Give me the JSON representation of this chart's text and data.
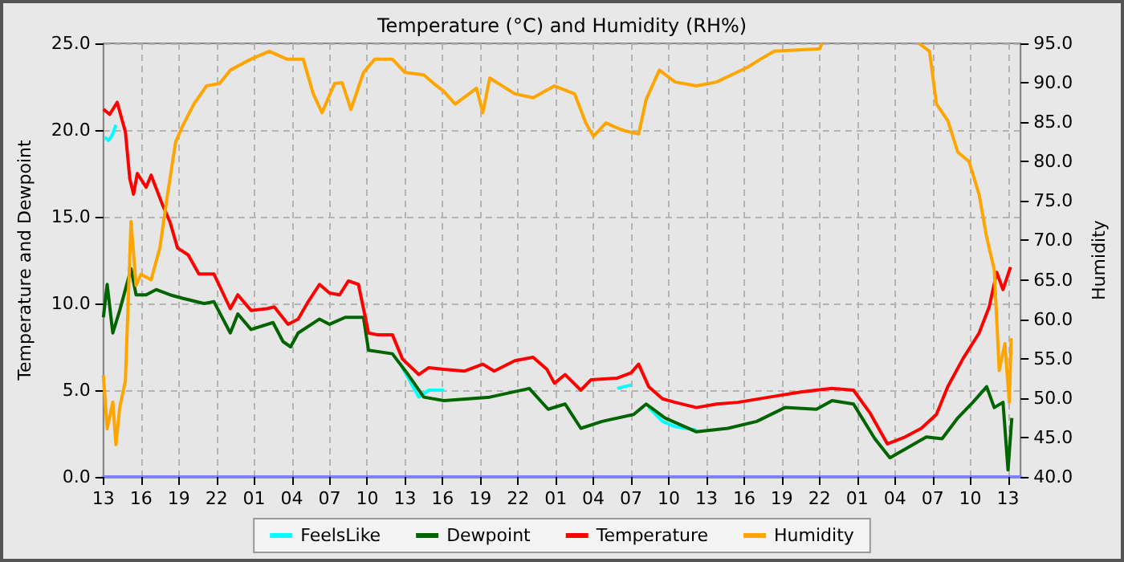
{
  "chart_data": {
    "type": "line",
    "title": "Temperature (°C) and Humidity (RH%)",
    "ylabel": "Temperature and Dewpoint",
    "y2label": "Humidity",
    "xlim": [
      "--01-01T13:00",
      "--01-04T14:00"
    ],
    "xticks": [
      {
        "value": "--01-01T13:00",
        "label": "13"
      },
      {
        "value": "--01-01T16:00",
        "label": "16"
      },
      {
        "value": "--01-01T19:00",
        "label": "19"
      },
      {
        "value": "--01-01T22:00",
        "label": "22"
      },
      {
        "value": "--01-02T01:00",
        "label": "01"
      },
      {
        "value": "--01-02T04:00",
        "label": "04"
      },
      {
        "value": "--01-02T07:00",
        "label": "07"
      },
      {
        "value": "--01-02T10:00",
        "label": "10"
      },
      {
        "value": "--01-02T13:00",
        "label": "13"
      },
      {
        "value": "--01-02T16:00",
        "label": "16"
      },
      {
        "value": "--01-02T19:00",
        "label": "19"
      },
      {
        "value": "--01-02T22:00",
        "label": "22"
      },
      {
        "value": "--01-03T01:00",
        "label": "01"
      },
      {
        "value": "--01-03T04:00",
        "label": "04"
      },
      {
        "value": "--01-03T07:00",
        "label": "07"
      },
      {
        "value": "--01-03T10:00",
        "label": "10"
      },
      {
        "value": "--01-03T13:00",
        "label": "13"
      },
      {
        "value": "--01-03T16:00",
        "label": "16"
      },
      {
        "value": "--01-03T19:00",
        "label": "19"
      },
      {
        "value": "--01-03T22:00",
        "label": "22"
      },
      {
        "value": "--01-04T01:00",
        "label": "01"
      },
      {
        "value": "--01-04T04:00",
        "label": "04"
      },
      {
        "value": "--01-04T07:00",
        "label": "07"
      },
      {
        "value": "--01-04T10:00",
        "label": "10"
      },
      {
        "value": "--01-04T13:00",
        "label": "13"
      }
    ],
    "ylim": [
      0,
      25
    ],
    "yticks": [
      {
        "value": 0,
        "label": "0.0"
      },
      {
        "value": 5,
        "label": "5.0"
      },
      {
        "value": 10,
        "label": "10.0"
      },
      {
        "value": 15,
        "label": "15.0"
      },
      {
        "value": 20,
        "label": "20.0"
      },
      {
        "value": 25,
        "label": "25.0"
      }
    ],
    "y2lim": [
      40,
      95
    ],
    "y2ticks": [
      {
        "value": 40,
        "label": "40.0"
      },
      {
        "value": 45,
        "label": "45.0"
      },
      {
        "value": 50,
        "label": "50.0"
      },
      {
        "value": 55,
        "label": "55.0"
      },
      {
        "value": 60,
        "label": "60.0"
      },
      {
        "value": 65,
        "label": "65.0"
      },
      {
        "value": 70,
        "label": "70.0"
      },
      {
        "value": 75,
        "label": "75.0"
      },
      {
        "value": 80,
        "label": "80.0"
      },
      {
        "value": 85,
        "label": "85.0"
      },
      {
        "value": 90,
        "label": "90.0"
      },
      {
        "value": 95,
        "label": "95.0"
      }
    ],
    "grid": true,
    "legend": "bottom",
    "marker": "none",
    "series": [
      {
        "name": "FeelsLike",
        "color": "#00ffff",
        "x": [
          "--01-01T13:06",
          "--01-01T13:24",
          "--01-01T13:42",
          "--01-01T14:00",
          "--01-01T20:00",
          "--01-02T12:48",
          "--01-02T14:06",
          "--01-02T14:54",
          "--01-02T16:06",
          "--01-02T23:00",
          "--01-03T05:54",
          "--01-03T07:00",
          "--01-03T08:00",
          "--01-03T08:24",
          "--01-03T09:30",
          "--01-03T10:30",
          "--01-03T12:12"
        ],
        "values": [
          19.6,
          19.4,
          19.7,
          20.3,
          null,
          6.3,
          4.6,
          5.0,
          5.0,
          null,
          5.1,
          5.3,
          null,
          4.0,
          3.2,
          2.9,
          2.7
        ]
      },
      {
        "name": "Dewpoint",
        "color": "#006400",
        "x": [
          "--01-01T13:00",
          "--01-01T13:18",
          "--01-01T13:45",
          "--01-01T14:18",
          "--01-01T15:12",
          "--01-01T15:36",
          "--01-01T16:24",
          "--01-01T17:12",
          "--01-01T18:18",
          "--01-01T19:18",
          "--01-01T21:00",
          "--01-01T21:48",
          "--01-01T23:06",
          "--01-01T23:42",
          "--01-02T00:45",
          "--01-02T02:30",
          "--01-02T03:18",
          "--01-02T03:54",
          "--01-02T04:30",
          "--01-02T06:12",
          "--01-02T07:00",
          "--01-02T08:15",
          "--01-02T09:42",
          "--01-02T10:06",
          "--01-02T12:00",
          "--01-02T13:15",
          "--01-02T14:30",
          "--01-02T16:06",
          "--01-02T19:45",
          "--01-02T22:54",
          "--01-03T00:24",
          "--01-03T01:45",
          "--01-03T03:00",
          "--01-03T04:42",
          "--01-03T07:12",
          "--01-03T08:12",
          "--01-03T09:42",
          "--01-03T12:12",
          "--01-03T14:42",
          "--01-03T17:00",
          "--01-03T19:15",
          "--01-03T21:45",
          "--01-03T23:00",
          "--01-04T00:42",
          "--01-04T02:24",
          "--01-04T03:36",
          "--01-04T04:48",
          "--01-04T06:30",
          "--01-04T07:45",
          "--01-04T09:00",
          "--01-04T10:12",
          "--01-04T11:18",
          "--01-04T11:54",
          "--01-04T12:36",
          "--01-04T13:00",
          "--01-04T13:18"
        ],
        "values": [
          9.2,
          11.1,
          8.3,
          9.6,
          12.0,
          10.5,
          10.5,
          10.8,
          10.5,
          10.3,
          10.0,
          10.1,
          8.3,
          9.4,
          8.5,
          8.9,
          7.8,
          7.5,
          8.3,
          9.1,
          8.8,
          9.2,
          9.2,
          7.3,
          7.1,
          5.9,
          4.6,
          4.4,
          4.6,
          5.1,
          3.9,
          4.2,
          2.8,
          3.2,
          3.6,
          4.2,
          3.4,
          2.6,
          2.8,
          3.2,
          4.0,
          3.9,
          4.4,
          4.2,
          2.2,
          1.1,
          1.6,
          2.3,
          2.2,
          3.4,
          4.3,
          5.2,
          4.0,
          4.3,
          0.4,
          3.4
        ]
      },
      {
        "name": "Temperature",
        "color": "#ff0000",
        "x": [
          "--01-01T13:00",
          "--01-01T13:30",
          "--01-01T14:06",
          "--01-01T14:45",
          "--01-01T15:06",
          "--01-01T15:24",
          "--01-01T15:42",
          "--01-01T16:24",
          "--01-01T16:48",
          "--01-01T17:42",
          "--01-01T18:18",
          "--01-01T18:54",
          "--01-01T19:45",
          "--01-01T20:36",
          "--01-01T21:48",
          "--01-01T23:06",
          "--01-01T23:42",
          "--01-02T00:45",
          "--01-02T02:00",
          "--01-02T02:36",
          "--01-02T03:42",
          "--01-02T04:30",
          "--01-02T05:18",
          "--01-02T06:12",
          "--01-02T07:00",
          "--01-02T07:48",
          "--01-02T08:30",
          "--01-02T09:18",
          "--01-02T10:06",
          "--01-02T10:45",
          "--01-02T12:00",
          "--01-02T12:48",
          "--01-02T14:06",
          "--01-02T14:54",
          "--01-02T16:06",
          "--01-02T17:45",
          "--01-02T19:12",
          "--01-02T20:06",
          "--01-02T21:45",
          "--01-02T23:12",
          "--01-03T00:18",
          "--01-03T00:54",
          "--01-03T01:45",
          "--01-03T03:00",
          "--01-03T03:48",
          "--01-03T05:54",
          "--01-03T07:00",
          "--01-03T07:36",
          "--01-03T08:24",
          "--01-03T09:30",
          "--01-03T10:30",
          "--01-03T12:12",
          "--01-03T13:48",
          "--01-03T15:30",
          "--01-03T18:00",
          "--01-03T20:30",
          "--01-03T23:00",
          "--01-04T00:42",
          "--01-04T02:00",
          "--01-04T03:24",
          "--01-04T04:48",
          "--01-04T06:06",
          "--01-04T07:18",
          "--01-04T08:12",
          "--01-04T09:24",
          "--01-04T10:42",
          "--01-04T11:30",
          "--01-04T12:06",
          "--01-04T12:36",
          "--01-04T13:12"
        ],
        "values": [
          21.2,
          20.9,
          21.6,
          19.9,
          17.2,
          16.3,
          17.5,
          16.7,
          17.4,
          15.7,
          14.7,
          13.2,
          12.8,
          11.7,
          11.7,
          9.7,
          10.5,
          9.6,
          9.7,
          9.8,
          8.8,
          9.1,
          10.1,
          11.1,
          10.6,
          10.5,
          11.3,
          11.1,
          8.3,
          8.2,
          8.2,
          6.8,
          5.9,
          6.3,
          6.2,
          6.1,
          6.5,
          6.1,
          6.7,
          6.9,
          6.2,
          5.4,
          5.9,
          5.0,
          5.6,
          5.7,
          6.0,
          6.5,
          5.2,
          4.5,
          4.3,
          4.0,
          4.2,
          4.3,
          4.6,
          4.9,
          5.1,
          5.0,
          3.7,
          1.9,
          2.3,
          2.8,
          3.6,
          5.2,
          6.8,
          8.3,
          9.8,
          11.8,
          10.8,
          12.1
        ]
      },
      {
        "name": "Humidity",
        "color": "#ffa500",
        "axis": "y2",
        "x": [
          "--01-01T13:00",
          "--01-01T13:18",
          "--01-01T13:45",
          "--01-01T14:00",
          "--01-01T14:18",
          "--01-01T14:45",
          "--01-01T15:12",
          "--01-01T15:36",
          "--01-01T16:00",
          "--01-01T16:48",
          "--01-01T17:30",
          "--01-01T18:06",
          "--01-01T18:45",
          "--01-01T19:18",
          "--01-01T20:12",
          "--01-01T21:12",
          "--01-01T22:15",
          "--01-01T23:06",
          "--01-02T00:45",
          "--01-02T02:12",
          "--01-02T03:36",
          "--01-02T04:54",
          "--01-02T05:42",
          "--01-02T06:24",
          "--01-02T07:24",
          "--01-02T08:00",
          "--01-02T08:42",
          "--01-02T09:42",
          "--01-02T10:36",
          "--01-02T12:00",
          "--01-02T13:00",
          "--01-02T14:30",
          "--01-02T15:18",
          "--01-02T16:06",
          "--01-02T17:00",
          "--01-02T18:42",
          "--01-02T19:12",
          "--01-02T19:45",
          "--01-02T21:45",
          "--01-02T23:12",
          "--01-03T00:54",
          "--01-03T02:30",
          "--01-03T03:24",
          "--01-03T04:00",
          "--01-03T05:00",
          "--01-03T06:00",
          "--01-03T06:30",
          "--01-03T07:36",
          "--01-03T08:12",
          "--01-03T09:15",
          "--01-03T10:30",
          "--01-03T12:12",
          "--01-03T13:48",
          "--01-03T15:00",
          "--01-03T16:18",
          "--01-03T17:18",
          "--01-03T18:24",
          "--01-03T22:00",
          "--01-03T22:12",
          "--01-04T02:00",
          "--01-04T05:54",
          "--01-04T06:45",
          "--01-04T07:18",
          "--01-04T08:12",
          "--01-04T09:00",
          "--01-04T09:54",
          "--01-04T10:42",
          "--01-04T11:18",
          "--01-04T11:54",
          "--01-04T12:18",
          "--01-04T12:45",
          "--01-04T13:06",
          "--01-04T13:15"
        ],
        "values": [
          52.9,
          46.1,
          49.5,
          44.1,
          48.8,
          52.2,
          72.4,
          64.3,
          65.7,
          65.0,
          69.1,
          75.8,
          82.5,
          84.5,
          87.3,
          89.6,
          89.9,
          91.6,
          93,
          94,
          93,
          93,
          88.6,
          86.2,
          89.9,
          90,
          86.6,
          91.3,
          93,
          93,
          91.3,
          91,
          89.9,
          88.9,
          87.3,
          89.3,
          86.2,
          90.6,
          88.6,
          88.1,
          89.6,
          88.6,
          84.9,
          83.2,
          84.9,
          84.2,
          83.9,
          83.5,
          87.9,
          91.6,
          90.1,
          89.6,
          90.1,
          91,
          92,
          93,
          94,
          94.3,
          95,
          null,
          95,
          94,
          87.3,
          85.2,
          81.2,
          80,
          75.8,
          70.4,
          66.3,
          53.5,
          56.9,
          49.5,
          57.6
        ]
      }
    ]
  }
}
